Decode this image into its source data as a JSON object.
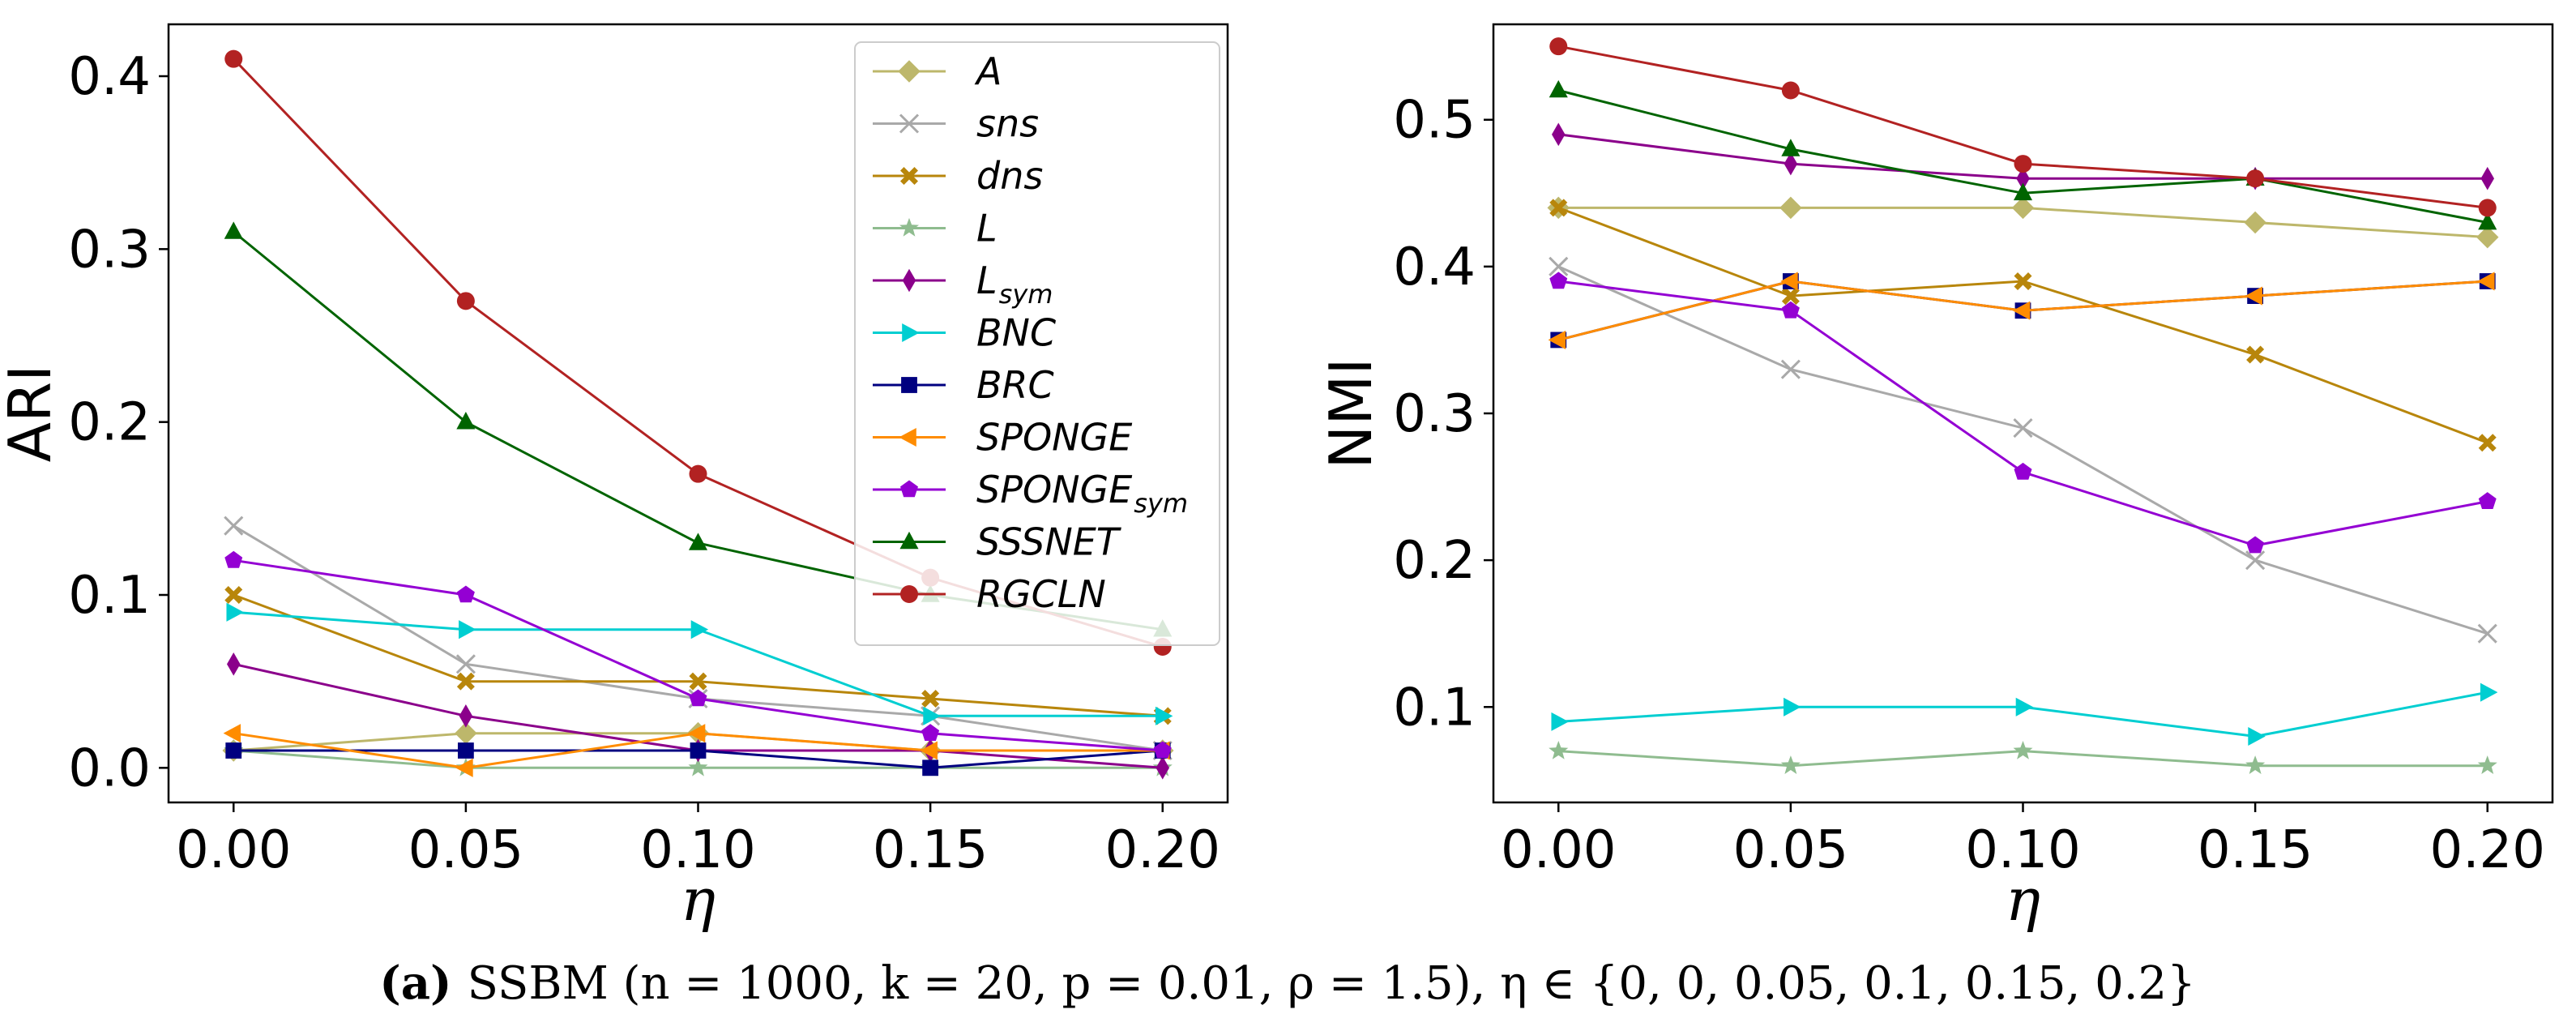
{
  "chart_data": [
    {
      "type": "line",
      "id": "ari",
      "xlabel": "η",
      "ylabel": "ARI",
      "xlim": [
        -0.014,
        0.214
      ],
      "ylim": [
        -0.02,
        0.43
      ],
      "xticks": [
        0.0,
        0.05,
        0.1,
        0.15,
        0.2
      ],
      "xtick_labels": [
        "0.00",
        "0.05",
        "0.10",
        "0.15",
        "0.20"
      ],
      "yticks": [
        0.0,
        0.1,
        0.2,
        0.3,
        0.4
      ],
      "ytick_labels": [
        "0.0",
        "0.1",
        "0.2",
        "0.3",
        "0.4"
      ],
      "legend_position": "top-right",
      "x": [
        0.0,
        0.05,
        0.1,
        0.15,
        0.2
      ],
      "series": [
        {
          "key": "A",
          "name": "A",
          "sub": "",
          "color": "#bdb76b",
          "marker": "diamond",
          "values": [
            0.01,
            0.02,
            0.02,
            0.01,
            0.01
          ]
        },
        {
          "key": "sns",
          "name": "sns",
          "sub": "",
          "color": "#a9a9a9",
          "marker": "x",
          "values": [
            0.14,
            0.06,
            0.04,
            0.03,
            0.01
          ]
        },
        {
          "key": "dns",
          "name": "dns",
          "sub": "",
          "color": "#b8860b",
          "marker": "X",
          "values": [
            0.1,
            0.05,
            0.05,
            0.04,
            0.03
          ]
        },
        {
          "key": "L",
          "name": "L",
          "sub": "",
          "color": "#8fbc8f",
          "marker": "star",
          "values": [
            0.01,
            0.0,
            0.0,
            0.0,
            0.0
          ]
        },
        {
          "key": "Lsym",
          "name": "L",
          "sub": "sym",
          "color": "#8b008b",
          "marker": "thin_diamond",
          "values": [
            0.06,
            0.03,
            0.01,
            0.01,
            0.0
          ]
        },
        {
          "key": "BNC",
          "name": "BNC",
          "sub": "",
          "color": "#00ced1",
          "marker": "tri_right",
          "values": [
            0.09,
            0.08,
            0.08,
            0.03,
            0.03
          ]
        },
        {
          "key": "BRC",
          "name": "BRC",
          "sub": "",
          "color": "#000080",
          "marker": "square",
          "values": [
            0.01,
            0.01,
            0.01,
            0.0,
            0.01
          ]
        },
        {
          "key": "SPONGE",
          "name": "SPONGE",
          "sub": "",
          "color": "#ff8c00",
          "marker": "tri_left",
          "values": [
            0.02,
            0.0,
            0.02,
            0.01,
            0.01
          ]
        },
        {
          "key": "SPONGEsym",
          "name": "SPONGE",
          "sub": "sym",
          "color": "#9400d3",
          "marker": "pentagon",
          "values": [
            0.12,
            0.1,
            0.04,
            0.02,
            0.01
          ]
        },
        {
          "key": "SSSNET",
          "name": "SSSNET",
          "sub": "",
          "color": "#006400",
          "marker": "tri_up",
          "values": [
            0.31,
            0.2,
            0.13,
            0.1,
            0.08
          ]
        },
        {
          "key": "RGCLN",
          "name": "RGCLN",
          "sub": "",
          "color": "#b22222",
          "marker": "circle",
          "values": [
            0.41,
            0.27,
            0.17,
            0.11,
            0.07
          ]
        }
      ]
    },
    {
      "type": "line",
      "id": "nmi",
      "xlabel": "η",
      "ylabel": "NMI",
      "xlim": [
        -0.014,
        0.214
      ],
      "ylim": [
        0.035,
        0.565
      ],
      "xticks": [
        0.0,
        0.05,
        0.1,
        0.15,
        0.2
      ],
      "xtick_labels": [
        "0.00",
        "0.05",
        "0.10",
        "0.15",
        "0.20"
      ],
      "yticks": [
        0.1,
        0.2,
        0.3,
        0.4,
        0.5
      ],
      "ytick_labels": [
        "0.1",
        "0.2",
        "0.3",
        "0.4",
        "0.5"
      ],
      "x": [
        0.0,
        0.05,
        0.1,
        0.15,
        0.2
      ],
      "series": [
        {
          "key": "A",
          "name": "A",
          "sub": "",
          "color": "#bdb76b",
          "marker": "diamond",
          "values": [
            0.44,
            0.44,
            0.44,
            0.43,
            0.42
          ]
        },
        {
          "key": "sns",
          "name": "sns",
          "sub": "",
          "color": "#a9a9a9",
          "marker": "x",
          "values": [
            0.4,
            0.33,
            0.29,
            0.2,
            0.15
          ]
        },
        {
          "key": "dns",
          "name": "dns",
          "sub": "",
          "color": "#b8860b",
          "marker": "X",
          "values": [
            0.44,
            0.38,
            0.39,
            0.34,
            0.28
          ]
        },
        {
          "key": "L",
          "name": "L",
          "sub": "",
          "color": "#8fbc8f",
          "marker": "star",
          "values": [
            0.07,
            0.06,
            0.07,
            0.06,
            0.06
          ]
        },
        {
          "key": "Lsym",
          "name": "L",
          "sub": "sym",
          "color": "#8b008b",
          "marker": "thin_diamond",
          "values": [
            0.49,
            0.47,
            0.46,
            0.46,
            0.46
          ]
        },
        {
          "key": "BNC",
          "name": "BNC",
          "sub": "",
          "color": "#00ced1",
          "marker": "tri_right",
          "values": [
            0.09,
            0.1,
            0.1,
            0.08,
            0.11
          ]
        },
        {
          "key": "BRC",
          "name": "BRC",
          "sub": "",
          "color": "#000080",
          "marker": "square",
          "values": [
            0.35,
            0.39,
            0.37,
            0.38,
            0.39
          ]
        },
        {
          "key": "SPONGE",
          "name": "SPONGE",
          "sub": "",
          "color": "#ff8c00",
          "marker": "tri_left",
          "values": [
            0.35,
            0.39,
            0.37,
            0.38,
            0.39
          ]
        },
        {
          "key": "SPONGEsym",
          "name": "SPONGE",
          "sub": "sym",
          "color": "#9400d3",
          "marker": "pentagon",
          "values": [
            0.39,
            0.37,
            0.26,
            0.21,
            0.24
          ]
        },
        {
          "key": "SSSNET",
          "name": "SSSNET",
          "sub": "",
          "color": "#006400",
          "marker": "tri_up",
          "values": [
            0.52,
            0.48,
            0.45,
            0.46,
            0.43
          ]
        },
        {
          "key": "RGCLN",
          "name": "RGCLN",
          "sub": "",
          "color": "#b22222",
          "marker": "circle",
          "values": [
            0.55,
            0.52,
            0.47,
            0.46,
            0.44
          ]
        }
      ]
    }
  ],
  "caption": {
    "label": "(a)",
    "text": "SSBM (n = 1000, k = 20, p = 0.01, ρ = 1.5),     η ∈ {0, 0, 0.05, 0.1, 0.15, 0.2}"
  }
}
